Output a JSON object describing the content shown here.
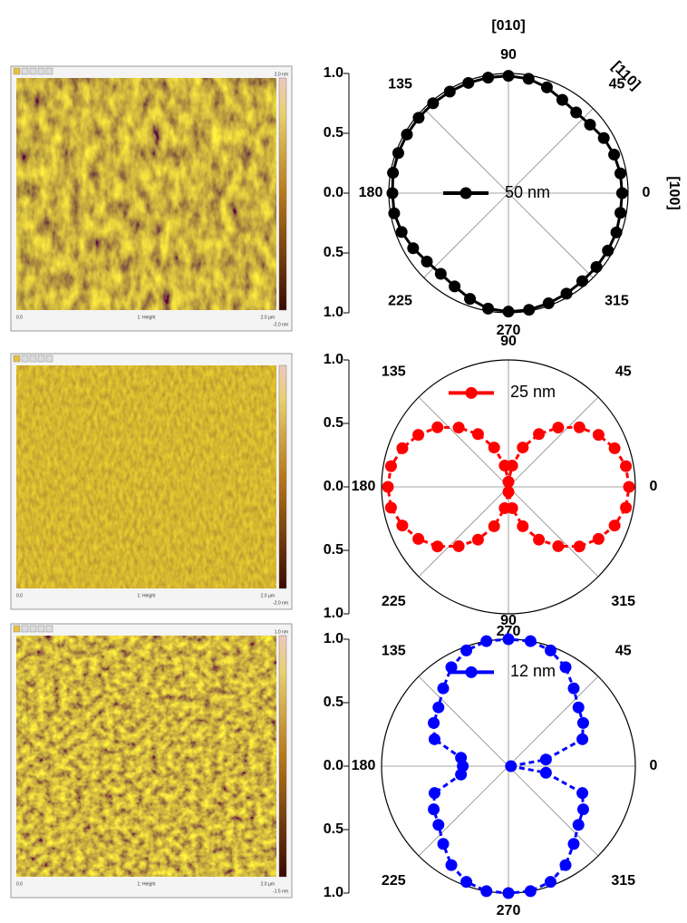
{
  "chart_data": [
    {
      "type": "polar",
      "x": [
        0,
        10,
        20,
        30,
        40,
        50,
        60,
        70,
        80,
        90,
        100,
        110,
        120,
        130,
        140,
        150,
        160,
        170,
        180,
        190,
        200,
        210,
        220,
        230,
        240,
        250,
        260,
        270,
        280,
        290,
        300,
        310,
        320,
        330,
        340,
        350
      ],
      "series": [
        {
          "name": "50 nm",
          "color": "#000000",
          "linestyle": "solid",
          "values": [
            0.95,
            0.95,
            0.94,
            0.92,
            0.89,
            0.88,
            0.9,
            0.94,
            0.97,
            0.98,
            0.98,
            0.98,
            0.98,
            0.98,
            0.98,
            0.98,
            0.98,
            0.98,
            0.97,
            0.97,
            0.95,
            0.92,
            0.89,
            0.88,
            0.9,
            0.94,
            0.98,
            0.99,
            0.99,
            0.98,
            0.97,
            0.96,
            0.96,
            0.96,
            0.96,
            0.95
          ]
        }
      ],
      "rlim": [
        0,
        1
      ],
      "rticks": [
        {
          "value": 0,
          "label": "0.0"
        },
        {
          "value": 0.5,
          "label": "0.5"
        },
        {
          "value": 1.0,
          "label": "1.0"
        }
      ],
      "thetaticks": [
        0,
        45,
        90,
        135,
        180,
        225,
        270,
        315
      ],
      "grid": true,
      "legend": "center",
      "annotations": [
        "[010]",
        "[110]",
        "[100]"
      ]
    },
    {
      "type": "polar",
      "x": [
        0,
        10,
        20,
        30,
        40,
        50,
        60,
        70,
        80,
        90,
        100,
        110,
        120,
        130,
        140,
        150,
        160,
        170,
        180,
        190,
        200,
        210,
        220,
        230,
        240,
        250,
        260,
        270,
        280,
        290,
        300,
        310,
        320,
        330,
        340,
        350
      ],
      "series": [
        {
          "name": "25 nm",
          "color": "#ff0000",
          "linestyle": "dash",
          "values": [
            0.95,
            0.94,
            0.89,
            0.82,
            0.73,
            0.61,
            0.48,
            0.33,
            0.17,
            0.04,
            0.17,
            0.33,
            0.48,
            0.61,
            0.73,
            0.82,
            0.89,
            0.94,
            0.95,
            0.94,
            0.89,
            0.82,
            0.73,
            0.61,
            0.48,
            0.33,
            0.17,
            0.04,
            0.17,
            0.33,
            0.48,
            0.61,
            0.73,
            0.82,
            0.89,
            0.94
          ]
        }
      ],
      "rlim": [
        0,
        1
      ],
      "rticks": [
        {
          "value": 0,
          "label": "0.0"
        },
        {
          "value": 0.5,
          "label": "0.5"
        },
        {
          "value": 1.0,
          "label": "1.0"
        }
      ],
      "thetaticks": [
        0,
        45,
        90,
        135,
        180,
        225,
        270,
        315
      ],
      "grid": true,
      "legend": "upper"
    },
    {
      "type": "polar",
      "x": [
        0,
        10,
        20,
        30,
        40,
        50,
        60,
        70,
        80,
        90,
        100,
        110,
        120,
        130,
        140,
        150,
        160,
        170,
        180,
        190,
        200,
        210,
        220,
        230,
        240,
        250,
        260,
        270,
        280,
        290,
        300,
        310,
        320,
        330,
        340,
        350
      ],
      "series": [
        {
          "name": "12 nm",
          "color": "#0000ff",
          "linestyle": "dash",
          "values": [
            0.02,
            0.3,
            0.62,
            0.68,
            0.72,
            0.8,
            0.9,
            0.97,
            1.0,
            1.0,
            1.0,
            0.97,
            0.9,
            0.8,
            0.72,
            0.68,
            0.62,
            0.38,
            0.36,
            0.38,
            0.62,
            0.68,
            0.72,
            0.8,
            0.9,
            0.97,
            1.0,
            1.0,
            1.0,
            0.97,
            0.9,
            0.8,
            0.72,
            0.68,
            0.62,
            0.3
          ]
        }
      ],
      "rlim": [
        0,
        1
      ],
      "rticks": [
        {
          "value": 0,
          "label": "0.0"
        },
        {
          "value": 0.5,
          "label": "0.5"
        },
        {
          "value": 1.0,
          "label": "1.0"
        }
      ],
      "thetaticks": [
        0,
        45,
        90,
        135,
        180,
        225,
        270,
        315
      ],
      "grid": true,
      "legend": "upper"
    }
  ],
  "images": [
    {
      "scale_top": "2.0 nm",
      "origin": "0.0",
      "channel": "1: Height",
      "size": "2.0 µm",
      "scale_bottom": "-2.0 nm"
    },
    {
      "origin": "0.0",
      "channel": "1: Height",
      "size": "2.0 µm",
      "scale_bottom": "-2.0 nm"
    },
    {
      "scale_top": "1.0 nm",
      "origin": "0.0",
      "channel": "1: Height",
      "size": "2.0 µm",
      "scale_bottom": "-1.5 nm"
    }
  ]
}
